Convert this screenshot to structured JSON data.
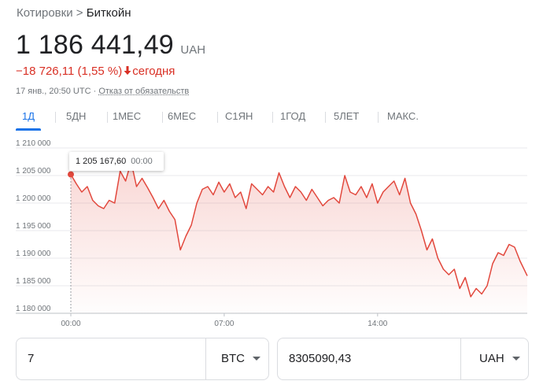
{
  "breadcrumb": {
    "parent": "Котировки",
    "separator": " > ",
    "current": "Биткойн"
  },
  "quote": {
    "price": "1 186 441,49",
    "currency": "UAH",
    "change": "−18 726,11 (1,55 %)",
    "change_arrow": "🡓",
    "change_period": "сегодня",
    "timestamp": "17 янв., 20:50 UTC · ",
    "disclaimer": "Отказ от обязательств"
  },
  "tabs": [
    {
      "label": "1Д",
      "active": true
    },
    {
      "label": "5ДН"
    },
    {
      "label": "1МЕС"
    },
    {
      "label": "6МЕС"
    },
    {
      "label": "С1ЯН"
    },
    {
      "label": "1ГОД"
    },
    {
      "label": "5ЛЕТ"
    },
    {
      "label": "МАКС."
    }
  ],
  "tooltip": {
    "value": "1 205 167,60",
    "time": "00:00"
  },
  "colors": {
    "accent": "#1a73e8",
    "negative": "#d93025",
    "line": "#e2483d",
    "grid": "#e8eaed"
  },
  "converter": {
    "from_value": "7",
    "from_currency": "BTC",
    "to_value": "8305090,43",
    "to_currency": "UAH"
  },
  "chart_data": {
    "type": "area",
    "xlabel": "",
    "ylabel": "",
    "ylim": [
      1180000,
      1210000
    ],
    "y_ticks": [
      1180000,
      1185000,
      1190000,
      1195000,
      1200000,
      1205000,
      1210000
    ],
    "y_tick_labels": [
      "1 180 000",
      "1 185 000",
      "1 190 000",
      "1 195 000",
      "1 200 000",
      "1 205 000",
      "1 210 000"
    ],
    "x_tick_labels": [
      "00:00",
      "07:00",
      "14:00"
    ],
    "x_ticks_hours": [
      0,
      7,
      14
    ],
    "xlim_hours": [
      0,
      20.83
    ],
    "grid": "horizontal",
    "series": [
      {
        "x_hours": [
          0,
          0.25,
          0.5,
          0.75,
          1.0,
          1.25,
          1.5,
          1.75,
          2.0,
          2.25,
          2.5,
          2.75,
          3.0,
          3.25,
          3.5,
          3.75,
          4.0,
          4.25,
          4.5,
          4.75,
          5.0,
          5.25,
          5.5,
          5.75,
          6.0,
          6.25,
          6.5,
          6.75,
          7.0,
          7.25,
          7.5,
          7.75,
          8.0,
          8.25,
          8.5,
          8.75,
          9.0,
          9.25,
          9.5,
          9.75,
          10.0,
          10.25,
          10.5,
          10.75,
          11.0,
          11.25,
          11.5,
          11.75,
          12.0,
          12.25,
          12.5,
          12.75,
          13.0,
          13.25,
          13.5,
          13.75,
          14.0,
          14.25,
          14.5,
          14.75,
          15.0,
          15.25,
          15.5,
          15.75,
          16.0,
          16.25,
          16.5,
          16.75,
          17.0,
          17.25,
          17.5,
          17.75,
          18.0,
          18.25,
          18.5,
          18.75,
          19.0,
          19.25,
          19.5,
          19.75,
          20.0,
          20.25,
          20.5,
          20.83
        ],
        "values": [
          1205200,
          1203500,
          1202000,
          1203000,
          1200500,
          1199500,
          1199000,
          1200500,
          1200000,
          1205800,
          1204000,
          1207500,
          1203000,
          1204500,
          1202800,
          1201000,
          1199000,
          1200500,
          1198500,
          1197000,
          1191500,
          1194000,
          1196000,
          1200000,
          1202500,
          1203000,
          1201500,
          1203800,
          1202000,
          1203500,
          1201000,
          1202000,
          1199000,
          1203500,
          1202500,
          1201500,
          1203000,
          1202000,
          1205500,
          1203000,
          1201000,
          1203000,
          1202000,
          1200500,
          1202500,
          1201000,
          1199500,
          1200500,
          1201000,
          1200000,
          1205000,
          1202000,
          1201500,
          1203000,
          1201000,
          1203500,
          1200000,
          1202000,
          1203000,
          1204000,
          1201500,
          1204500,
          1200000,
          1198000,
          1195000,
          1191500,
          1193500,
          1190000,
          1188000,
          1187000,
          1188000,
          1184500,
          1186500,
          1183000,
          1184500,
          1183500,
          1185000,
          1189000,
          1191000,
          1190500,
          1192500,
          1192000,
          1189500,
          1186800
        ]
      }
    ]
  }
}
